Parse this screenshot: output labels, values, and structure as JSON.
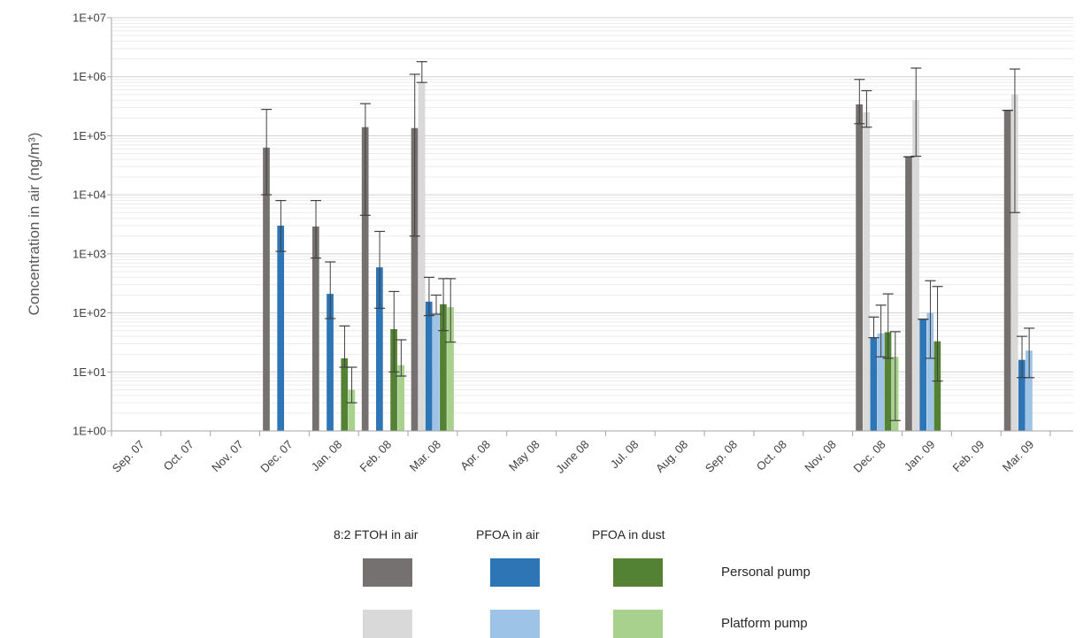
{
  "chart_data": {
    "type": "bar",
    "scale": "log",
    "ylabel": "Concentration in air (ng/m³)",
    "ytick_labels": [
      "1E+00",
      "1E+01",
      "1E+02",
      "1E+03",
      "1E+04",
      "1E+05",
      "1E+06",
      "1E+07"
    ],
    "ylim": [
      1,
      10000000
    ],
    "grid": true,
    "categories": [
      "Sep. 07",
      "Oct. 07",
      "Nov. 07",
      "Dec. 07",
      "Jan. 08",
      "Feb. 08",
      "Mar. 08",
      "Apr. 08",
      "May 08",
      "June 08",
      "Jul. 08",
      "Aug. 08",
      "Sep. 08",
      "Oct. 08",
      "Nov. 08",
      "Dec. 08",
      "Jan. 09",
      "Feb. 09",
      "Mar. 09"
    ],
    "series": [
      {
        "color": "#767171",
        "values": [
          null,
          null,
          null,
          63000,
          2900,
          140000,
          135000,
          null,
          null,
          null,
          null,
          null,
          null,
          null,
          null,
          340000,
          44000,
          null,
          270000
        ],
        "err_low": [
          null,
          null,
          null,
          10000,
          850,
          4500,
          2000,
          null,
          null,
          null,
          null,
          null,
          null,
          null,
          null,
          160000,
          44000,
          null,
          270000
        ],
        "err_high": [
          null,
          null,
          null,
          280000,
          8000,
          350000,
          1100000,
          null,
          null,
          null,
          null,
          null,
          null,
          null,
          null,
          900000,
          44000,
          null,
          270000
        ]
      },
      {
        "color": "#D9D9D9",
        "values": [
          null,
          null,
          null,
          null,
          null,
          null,
          800000,
          null,
          null,
          null,
          null,
          null,
          null,
          null,
          null,
          250000,
          400000,
          null,
          500000
        ],
        "err_low": [
          null,
          null,
          null,
          null,
          null,
          null,
          800000,
          null,
          null,
          null,
          null,
          null,
          null,
          null,
          null,
          140000,
          45000,
          null,
          5000
        ],
        "err_high": [
          null,
          null,
          null,
          null,
          null,
          null,
          1800000,
          null,
          null,
          null,
          null,
          null,
          null,
          null,
          null,
          580000,
          1400000,
          null,
          1350000
        ]
      },
      {
        "color": "#2E75B6",
        "values": [
          null,
          null,
          null,
          3000,
          210,
          590,
          155,
          null,
          null,
          null,
          null,
          null,
          null,
          null,
          null,
          38,
          78,
          null,
          16
        ],
        "err_low": [
          null,
          null,
          null,
          1100,
          80,
          120,
          90,
          null,
          null,
          null,
          null,
          null,
          null,
          null,
          null,
          38,
          78,
          null,
          8
        ],
        "err_high": [
          null,
          null,
          null,
          8000,
          730,
          2400,
          400,
          null,
          null,
          null,
          null,
          null,
          null,
          null,
          null,
          85,
          78,
          null,
          40
        ]
      },
      {
        "color": "#9DC3E6",
        "values": [
          null,
          null,
          null,
          null,
          null,
          null,
          95,
          null,
          null,
          null,
          null,
          null,
          null,
          null,
          null,
          45,
          100,
          null,
          23
        ],
        "err_low": [
          null,
          null,
          null,
          null,
          null,
          null,
          95,
          null,
          null,
          null,
          null,
          null,
          null,
          null,
          null,
          18,
          17,
          null,
          8
        ],
        "err_high": [
          null,
          null,
          null,
          null,
          null,
          null,
          200,
          null,
          null,
          null,
          null,
          null,
          null,
          null,
          null,
          135,
          350,
          null,
          55
        ]
      },
      {
        "color": "#548235",
        "values": [
          null,
          null,
          null,
          null,
          17,
          53,
          140,
          null,
          null,
          null,
          null,
          null,
          null,
          null,
          null,
          47,
          33,
          null,
          null
        ],
        "err_low": [
          null,
          null,
          null,
          null,
          12,
          10,
          50,
          null,
          null,
          null,
          null,
          null,
          null,
          null,
          null,
          17,
          7,
          null,
          null
        ],
        "err_high": [
          null,
          null,
          null,
          null,
          60,
          230,
          380,
          null,
          null,
          null,
          null,
          null,
          null,
          null,
          null,
          210,
          280,
          null,
          null
        ]
      },
      {
        "color": "#A9D18E",
        "values": [
          null,
          null,
          null,
          null,
          5,
          13,
          125,
          null,
          null,
          null,
          null,
          null,
          null,
          null,
          null,
          18,
          null,
          null,
          null
        ],
        "err_low": [
          null,
          null,
          null,
          null,
          3,
          8.5,
          32,
          null,
          null,
          null,
          null,
          null,
          null,
          null,
          null,
          1.5,
          null,
          null,
          null
        ],
        "err_high": [
          null,
          null,
          null,
          null,
          12,
          35,
          380,
          null,
          null,
          null,
          null,
          null,
          null,
          null,
          null,
          48,
          null,
          null,
          null
        ]
      }
    ]
  },
  "legend": {
    "columns": [
      "8:2 FTOH in air",
      "PFOA in air",
      "PFOA in dust"
    ],
    "rows": [
      {
        "label": "Personal pump",
        "colors": [
          "#767171",
          "#2E75B6",
          "#548235"
        ]
      },
      {
        "label": "Platform pump",
        "colors": [
          "#D9D9D9",
          "#9DC3E6",
          "#A9D18E"
        ]
      }
    ]
  }
}
